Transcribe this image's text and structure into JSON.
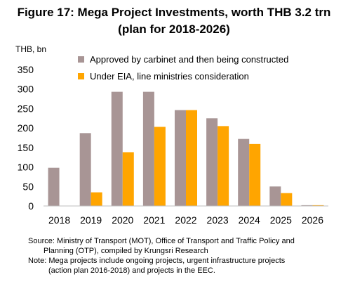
{
  "title_line1": "Figure 17: Mega Project Investments, worth THB 3.2 trn",
  "title_line2": "(plan for 2018-2026)",
  "chart_data": {
    "type": "bar",
    "ylabel": "THB, bn",
    "ylim": [
      0,
      350
    ],
    "yticks": [
      0,
      50,
      100,
      150,
      200,
      250,
      300,
      350
    ],
    "categories": [
      "2018",
      "2019",
      "2020",
      "2021",
      "2022",
      "2023",
      "2024",
      "2025",
      "2026"
    ],
    "series": [
      {
        "name": "Approved by carbinet and then being constructed",
        "color": "#a89595",
        "values": [
          98,
          187,
          293,
          293,
          246,
          225,
          172,
          50,
          2
        ]
      },
      {
        "name": "Under EIA, line ministries consideration",
        "color": "#ffa500",
        "values": [
          0,
          35,
          138,
          203,
          246,
          205,
          159,
          33,
          2
        ]
      }
    ],
    "legend": "top-right",
    "grid": false
  },
  "notes": {
    "source_1": "Source: Ministry of Transport (MOT), Office of Transport and Traffic Policy and",
    "source_2": "Planning (OTP), compiled by Krungsri Research",
    "note_1": "Note: Mega projects include ongoing projects, urgent infrastructure projects",
    "note_2": "(action plan 2016-2018) and projects in the EEC."
  }
}
